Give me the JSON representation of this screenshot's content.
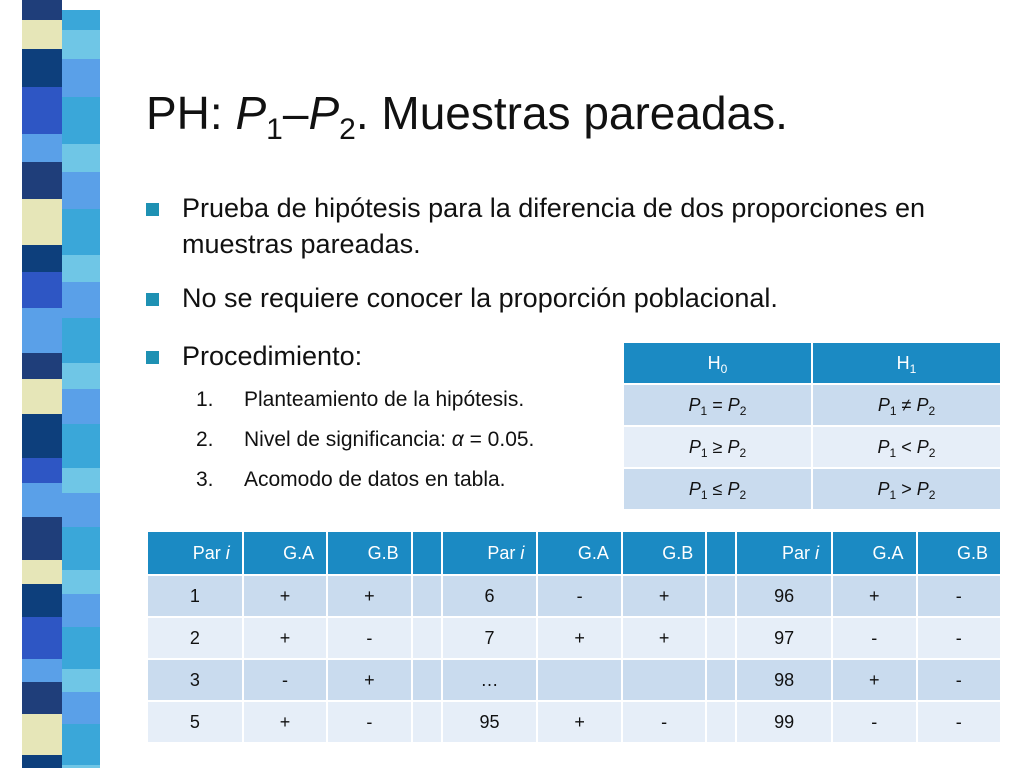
{
  "colors": {
    "accent": "#1e91b3",
    "table_header": "#1b8ac3",
    "row_light": "#c9dbee",
    "row_lighter": "#e6eef8"
  },
  "title": {
    "prefix": "PH: ",
    "p": "P",
    "s1": "1",
    "dash": "–",
    "s2": "2",
    "suffix": ". Muestras pareadas."
  },
  "bullets": [
    {
      "text": "Prueba de hipótesis para la diferencia de dos proporciones en muestras pareadas."
    },
    {
      "text": "No se requiere conocer la proporción poblacional."
    },
    {
      "text": "Procedimiento:"
    }
  ],
  "steps": [
    {
      "num": "1.",
      "text": "Planteamiento de la hipótesis."
    },
    {
      "num": "2.",
      "text": "Nivel de significancia: ",
      "alpha": "α",
      "value": " = 0.05."
    },
    {
      "num": "3.",
      "text": "Acomodo de datos en tabla."
    }
  ],
  "hypothesis_table": {
    "h0_label": "H",
    "h0_sub": "0",
    "h1_label": "H",
    "h1_sub": "1",
    "rows": [
      {
        "h0": [
          "P",
          "1",
          " = ",
          "P",
          "2"
        ],
        "h1": [
          "P",
          "1",
          " ≠  ",
          "P",
          "2"
        ]
      },
      {
        "h0": [
          "P",
          "1",
          " ≥ ",
          "P",
          "2"
        ],
        "h1": [
          "P",
          "1",
          " < ",
          "P",
          "2"
        ]
      },
      {
        "h0": [
          "P",
          "1",
          " ≤ ",
          "P",
          "2"
        ],
        "h1": [
          "P",
          "1",
          " > ",
          "P",
          "2"
        ]
      }
    ]
  },
  "data_table": {
    "headers": {
      "par": "Par ",
      "i": "i",
      "ga": "G.A",
      "gb": "G.B"
    },
    "rows": [
      [
        [
          "1",
          "+",
          "+"
        ],
        [
          "6",
          "-",
          "+"
        ],
        [
          "96",
          "+",
          "-"
        ]
      ],
      [
        [
          "2",
          "+",
          "-"
        ],
        [
          "7",
          "+",
          "+"
        ],
        [
          "97",
          "-",
          "-"
        ]
      ],
      [
        [
          "3",
          "-",
          "+"
        ],
        [
          "…",
          "",
          ""
        ],
        [
          "98",
          "+",
          "-"
        ]
      ],
      [
        [
          "5",
          "+",
          "-"
        ],
        [
          "95",
          "+",
          "-"
        ],
        [
          "99",
          "-",
          "-"
        ]
      ]
    ]
  }
}
